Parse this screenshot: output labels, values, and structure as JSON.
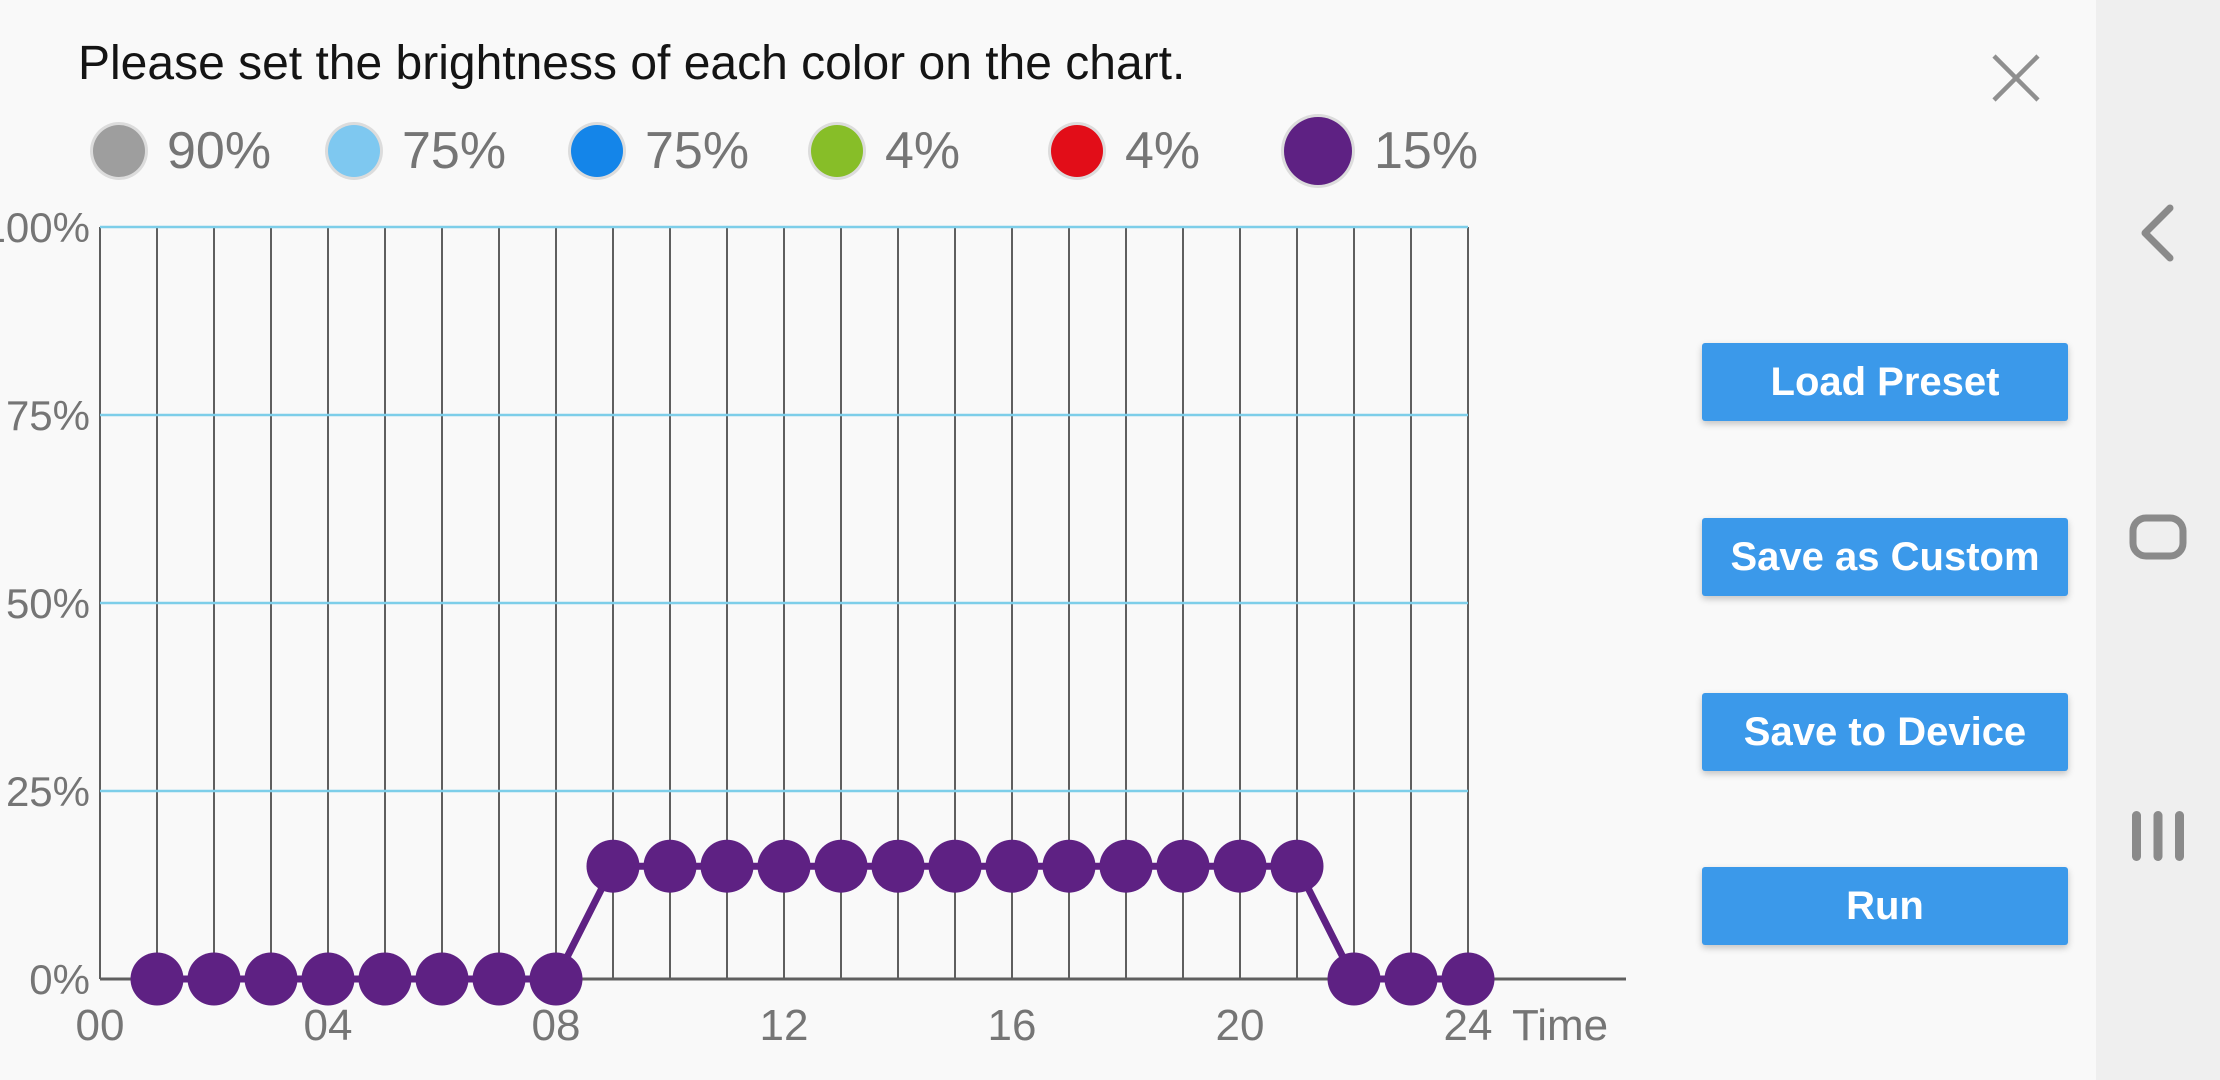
{
  "app": {
    "background": "#F9F9F9"
  },
  "header": {
    "title": "Please set the brightness of each color on the chart."
  },
  "legend": {
    "items": [
      {
        "channel": "gray",
        "color": "#9E9E9E",
        "value": "90%",
        "selected": false
      },
      {
        "channel": "sky-blue",
        "color": "#7EC8F0",
        "value": "75%",
        "selected": false
      },
      {
        "channel": "blue",
        "color": "#1485E9",
        "value": "75%",
        "selected": false
      },
      {
        "channel": "green",
        "color": "#87BE28",
        "value": "4%",
        "selected": false
      },
      {
        "channel": "red",
        "color": "#E20D18",
        "value": "4%",
        "selected": false
      },
      {
        "channel": "purple",
        "color": "#5E2183",
        "value": "15%",
        "selected": true
      }
    ]
  },
  "chart_data": {
    "type": "line",
    "title": "",
    "xlabel": "Time",
    "ylabel": "",
    "x_ticks": [
      "00",
      "04",
      "08",
      "12",
      "16",
      "20",
      "24"
    ],
    "y_ticks": [
      "0%",
      "25%",
      "50%",
      "75%",
      "100%"
    ],
    "xlim": [
      0,
      24
    ],
    "ylim": [
      0,
      100
    ],
    "grid": "on",
    "legend_position": "none",
    "series": [
      {
        "name": "purple-channel",
        "color": "#5E2183",
        "x": [
          1,
          2,
          3,
          4,
          5,
          6,
          7,
          8,
          9,
          10,
          11,
          12,
          13,
          14,
          15,
          16,
          17,
          18,
          19,
          20,
          21,
          22,
          23,
          24
        ],
        "values": [
          0,
          0,
          0,
          0,
          0,
          0,
          0,
          0,
          15,
          15,
          15,
          15,
          15,
          15,
          15,
          15,
          15,
          15,
          15,
          15,
          15,
          0,
          0,
          0
        ]
      }
    ],
    "style": {
      "vertical_grid_color": "#5F5F5F",
      "horizontal_grid_color": "#7DCEE9",
      "axis_color": "#5F5F5F",
      "tick_label_color": "#757575"
    }
  },
  "actions": {
    "button_color": "#3B99EA",
    "buttons": [
      {
        "label": "Load Preset"
      },
      {
        "label": "Save as Custom"
      },
      {
        "label": "Save to Device"
      },
      {
        "label": "Run"
      }
    ]
  },
  "nav_bar": {
    "background": "#EFEFEF",
    "icon_color": "#8A8A8A",
    "icons": [
      "back",
      "home",
      "recents"
    ]
  }
}
